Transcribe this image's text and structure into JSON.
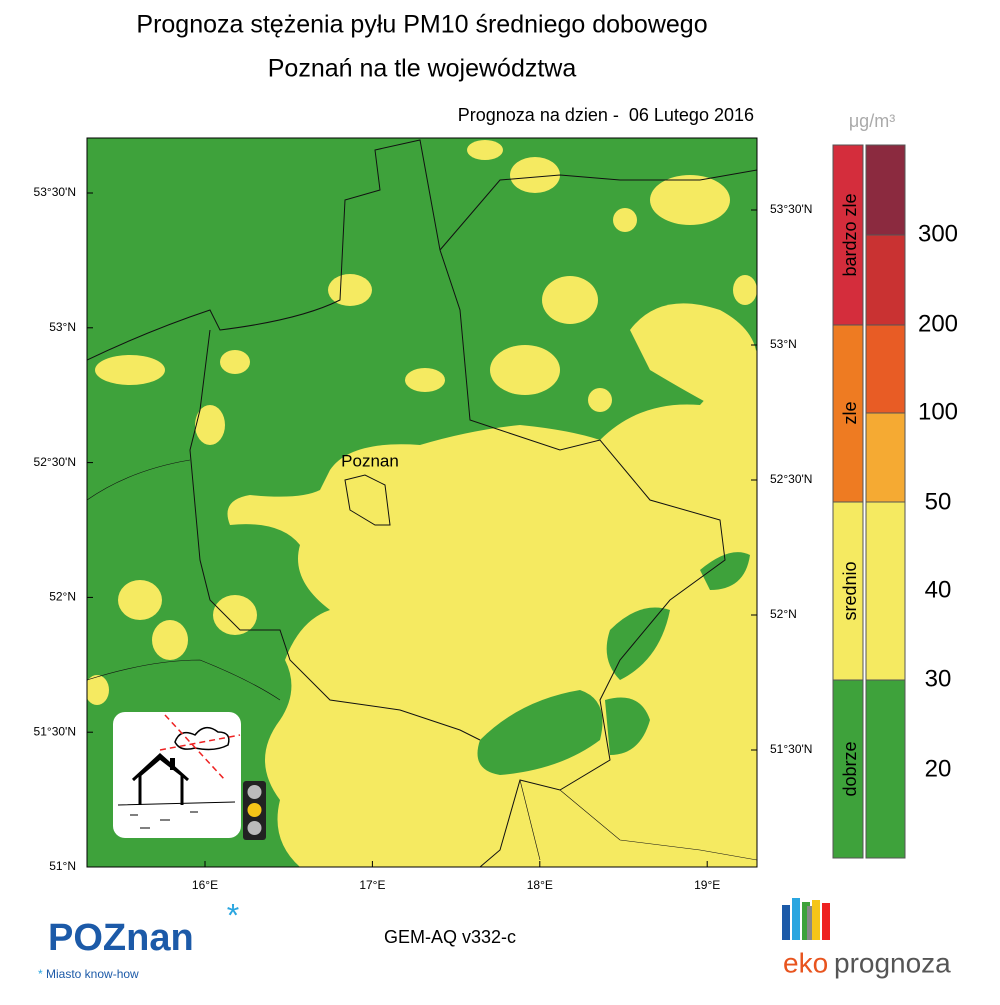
{
  "title": "Prognoza stężenia pyłu PM10 średniego dobowego",
  "subtitle": "Poznań na tle województwa",
  "date_label": "Prognoza na dzien -  06 Lutego 2016",
  "unit": "μg/m³",
  "map": {
    "city_label": "Poznan",
    "left_lat_labels": [
      "53°30'N",
      "53°N",
      "52°30'N",
      "52°N",
      "51°30'N",
      "51°N"
    ],
    "right_lat_labels": [
      "53°30'N",
      "53°N",
      "52°30'N",
      "52°N",
      "51°30'N"
    ],
    "lon_labels": [
      "16°E",
      "17°E",
      "18°E",
      "19°E"
    ]
  },
  "legend": {
    "categories": [
      "bardzo zle",
      "zle",
      "srednio",
      "dobrze"
    ],
    "levels": [
      "300",
      "200",
      "100",
      "50",
      "40",
      "30",
      "20"
    ]
  },
  "model": "GEM-AQ v332-c",
  "logos": {
    "poznan": "POZnan",
    "poznan_tagline": "Miasto know-how",
    "eko": "eko",
    "prognoza": "prognoza"
  }
}
